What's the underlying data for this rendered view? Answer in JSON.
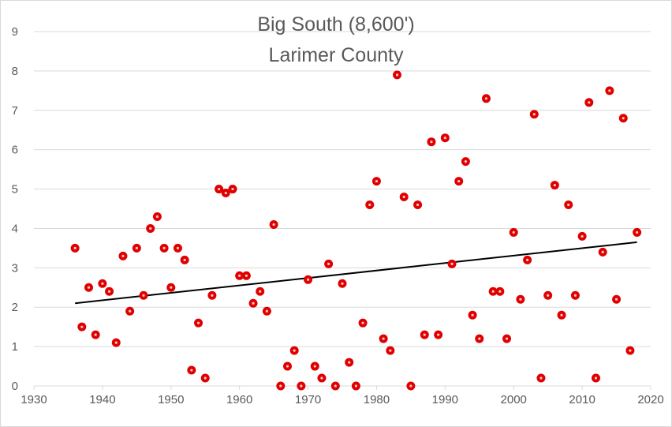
{
  "chart_data": {
    "type": "scatter",
    "title": "Big South (8,600')",
    "subtitle": "Larimer County",
    "xlabel": "",
    "ylabel": "",
    "xlim": [
      1930,
      2020
    ],
    "ylim": [
      0,
      9
    ],
    "x_ticks": [
      1930,
      1940,
      1950,
      1960,
      1970,
      1980,
      1990,
      2000,
      2010,
      2020
    ],
    "y_ticks": [
      0,
      1,
      2,
      3,
      4,
      5,
      6,
      7,
      8,
      9
    ],
    "grid": true,
    "legend": "none",
    "marker_color": "#e00000",
    "marker_center_color": "#ffc7c7",
    "trendline_color": "#000000",
    "trendline": {
      "type": "linear",
      "x": [
        1936,
        2018
      ],
      "y": [
        2.1,
        3.65
      ]
    },
    "series": [
      {
        "points": [
          [
            1936,
            3.5
          ],
          [
            1937,
            1.5
          ],
          [
            1938,
            2.5
          ],
          [
            1939,
            1.3
          ],
          [
            1940,
            2.6
          ],
          [
            1941,
            2.4
          ],
          [
            1942,
            1.1
          ],
          [
            1943,
            3.3
          ],
          [
            1944,
            1.9
          ],
          [
            1945,
            3.5
          ],
          [
            1946,
            2.3
          ],
          [
            1947,
            4.0
          ],
          [
            1948,
            4.3
          ],
          [
            1949,
            3.5
          ],
          [
            1950,
            2.5
          ],
          [
            1951,
            3.5
          ],
          [
            1952,
            3.2
          ],
          [
            1953,
            0.4
          ],
          [
            1954,
            1.6
          ],
          [
            1955,
            0.2
          ],
          [
            1956,
            2.3
          ],
          [
            1957,
            5.0
          ],
          [
            1958,
            4.9
          ],
          [
            1959,
            5.0
          ],
          [
            1960,
            2.8
          ],
          [
            1961,
            2.8
          ],
          [
            1962,
            2.1
          ],
          [
            1963,
            2.4
          ],
          [
            1964,
            1.9
          ],
          [
            1965,
            4.1
          ],
          [
            1966,
            0.0
          ],
          [
            1967,
            0.5
          ],
          [
            1968,
            0.9
          ],
          [
            1969,
            0.0
          ],
          [
            1970,
            2.7
          ],
          [
            1971,
            0.5
          ],
          [
            1972,
            0.2
          ],
          [
            1973,
            3.1
          ],
          [
            1974,
            0.0
          ],
          [
            1975,
            2.6
          ],
          [
            1976,
            0.6
          ],
          [
            1977,
            0.0
          ],
          [
            1978,
            1.6
          ],
          [
            1979,
            4.6
          ],
          [
            1980,
            5.2
          ],
          [
            1981,
            1.2
          ],
          [
            1982,
            0.9
          ],
          [
            1983,
            7.9
          ],
          [
            1984,
            4.8
          ],
          [
            1985,
            0.0
          ],
          [
            1986,
            4.6
          ],
          [
            1987,
            1.3
          ],
          [
            1988,
            6.2
          ],
          [
            1989,
            1.3
          ],
          [
            1990,
            6.3
          ],
          [
            1991,
            3.1
          ],
          [
            1992,
            5.2
          ],
          [
            1993,
            5.7
          ],
          [
            1994,
            1.8
          ],
          [
            1995,
            1.2
          ],
          [
            1996,
            7.3
          ],
          [
            1997,
            2.4
          ],
          [
            1998,
            2.4
          ],
          [
            1999,
            1.2
          ],
          [
            2000,
            3.9
          ],
          [
            2001,
            2.2
          ],
          [
            2002,
            3.2
          ],
          [
            2003,
            6.9
          ],
          [
            2004,
            0.2
          ],
          [
            2005,
            2.3
          ],
          [
            2006,
            5.1
          ],
          [
            2007,
            1.8
          ],
          [
            2008,
            4.6
          ],
          [
            2009,
            2.3
          ],
          [
            2010,
            3.8
          ],
          [
            2011,
            7.2
          ],
          [
            2012,
            0.2
          ],
          [
            2013,
            3.4
          ],
          [
            2014,
            7.5
          ],
          [
            2015,
            2.2
          ],
          [
            2016,
            6.8
          ],
          [
            2017,
            0.9
          ],
          [
            2018,
            3.9
          ]
        ]
      }
    ]
  }
}
